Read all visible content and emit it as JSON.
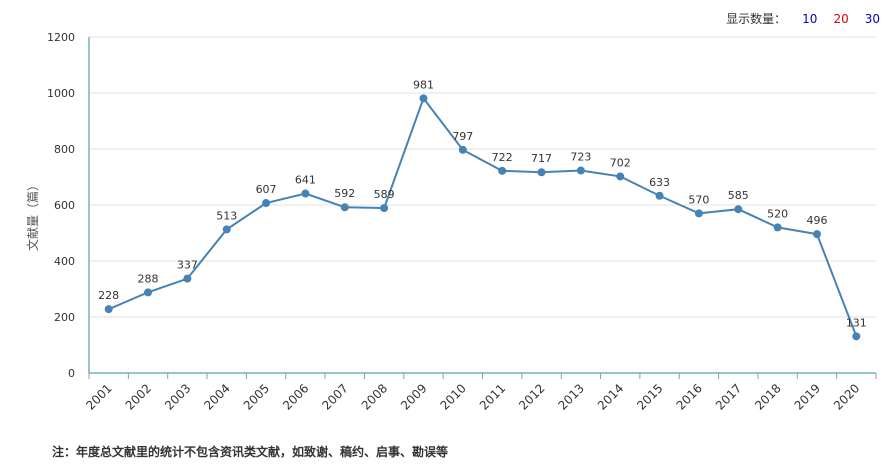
{
  "controls": {
    "display_label": "显示数量：",
    "options": [
      {
        "label": "10",
        "color": "#0000cc"
      },
      {
        "label": "20",
        "color": "#dd0000"
      },
      {
        "label": "30",
        "color": "#0000cc"
      }
    ]
  },
  "note": "注：年度总文献里的统计不包含资讯类文献，如致谢、稿约、启事、勘误等",
  "chart_data": {
    "type": "line",
    "title": "",
    "xlabel": "",
    "ylabel": "文献量（篇）",
    "ylim": [
      0,
      1200
    ],
    "yticks": [
      0,
      200,
      400,
      600,
      800,
      1000,
      1200
    ],
    "grid": true,
    "categories": [
      "2001",
      "2002",
      "2003",
      "2004",
      "2005",
      "2006",
      "2007",
      "2008",
      "2009",
      "2010",
      "2011",
      "2012",
      "2013",
      "2014",
      "2015",
      "2016",
      "2017",
      "2018",
      "2019",
      "2020"
    ],
    "series": [
      {
        "color": "#4682b4",
        "values": [
          228,
          288,
          337,
          513,
          607,
          641,
          592,
          589,
          981,
          797,
          722,
          717,
          723,
          702,
          633,
          570,
          585,
          520,
          496,
          131
        ]
      }
    ]
  }
}
